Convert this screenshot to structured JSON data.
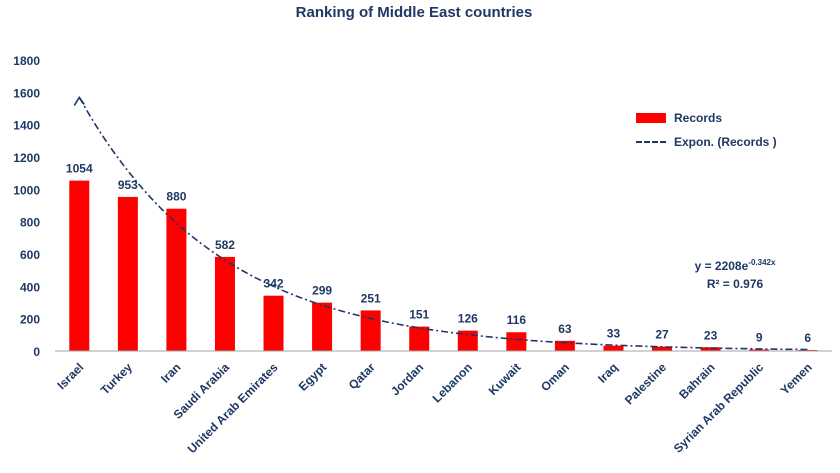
{
  "chart_data": {
    "type": "bar",
    "title": "Ranking of Middle East countries",
    "categories": [
      "Israel",
      "Turkey",
      "Iran",
      "Saudi Arabia",
      "United Arab Emirates",
      "Egypt",
      "Qatar",
      "Jordan",
      "Lebanon",
      "Kuwait",
      "Oman",
      "Iraq",
      "Palestine",
      "Bahrain",
      "Syrian Arab Republic",
      "Yemen"
    ],
    "series": [
      {
        "name": "Records",
        "values": [
          1054,
          953,
          880,
          582,
          342,
          299,
          251,
          151,
          126,
          116,
          63,
          33,
          27,
          23,
          9,
          6
        ],
        "color": "#ff0000"
      }
    ],
    "trendline": {
      "name": "Expon. (Records )",
      "type": "exponential",
      "a": 2208,
      "b": -0.342,
      "equation_prefix": "y = 2208e",
      "equation_exponent": "-0.342x",
      "r2_label": "R² = 0.976",
      "color": "#1f3864"
    },
    "ylim": [
      0,
      1800
    ],
    "yticks": [
      0,
      200,
      400,
      600,
      800,
      1000,
      1200,
      1400,
      1600,
      1800
    ],
    "xlabel": "",
    "ylabel": "",
    "legend": "right",
    "grid": false,
    "text_color": "#1f3864"
  }
}
